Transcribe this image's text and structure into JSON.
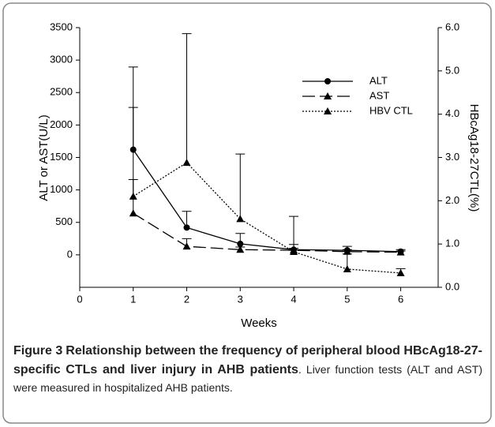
{
  "chart_data": {
    "type": "line",
    "x": [
      1,
      2,
      3,
      4,
      5,
      6
    ],
    "series": [
      {
        "name": "ALT",
        "color": "#000000",
        "marker": "circle",
        "dash": "solid",
        "values": [
          1620,
          420,
          170,
          80,
          70,
          50
        ],
        "error": [
          650,
          250,
          160,
          80,
          60,
          30
        ]
      },
      {
        "name": "AST",
        "color": "#000000",
        "marker": "triangle",
        "dash": "dashed",
        "values": [
          640,
          130,
          80,
          70,
          50,
          40
        ],
        "error": [
          520,
          120,
          40,
          30,
          30,
          20
        ]
      },
      {
        "name": "HBV CTL",
        "color": "#000000",
        "marker": "triangle",
        "dash": "dotted",
        "axis": "y2",
        "values": [
          2.1,
          2.88,
          1.58,
          0.82,
          0.42,
          0.33
        ],
        "error": [
          2.99,
          2.98,
          1.5,
          0.82,
          0.35,
          0.1
        ]
      }
    ],
    "xlabel": "Weeks",
    "ylabel": "ALT or AST(U/L)",
    "y2label": "HBcAg18-27CTL(%)",
    "xlim": [
      0,
      6.7
    ],
    "xticks": [
      0,
      1,
      2,
      3,
      4,
      5,
      6
    ],
    "ylim": [
      -500,
      3500
    ],
    "yticks": [
      0,
      500,
      1000,
      1500,
      2000,
      2500,
      3000,
      3500
    ],
    "y2lim": [
      0,
      6
    ],
    "y2ticks": [
      {
        "value": 0,
        "label": "0.0"
      },
      {
        "value": 1,
        "label": "1.0"
      },
      {
        "value": 2,
        "label": "2.0"
      },
      {
        "value": 3,
        "label": "3.0"
      },
      {
        "value": 4,
        "label": "4.0"
      },
      {
        "value": 5,
        "label": "5.0"
      },
      {
        "value": 6,
        "label": "6.0"
      }
    ],
    "legend": "upper right",
    "caption": {
      "label": "Figure 3",
      "title": "Relationship between the frequency of peripheral blood HBcAg18-27-specific CTLs and liver injury in AHB patients",
      "text": ". Liver function tests (ALT and AST) were measured in hospitalized AHB patients."
    }
  }
}
